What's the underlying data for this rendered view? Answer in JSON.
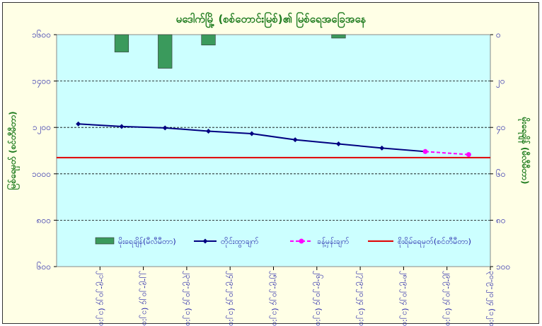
{
  "chart_data": {
    "type": "bar",
    "title": "မဒေါက်မြို့ (စစ်တောင်းမြစ်)၏ မြစ်ရေအခြေအနေ",
    "ylabel_left": "မြစ်ရေမှတ် (စင်တီမီတာ)",
    "ylabel_right": "မိုးရေချိန် (မီလီမီတာ)",
    "ylim_left": [
      600,
      1600
    ],
    "yticks_left": [
      "၆၀၀",
      "၈၀၀",
      "၁၀၀၀",
      "၁၂၀၀",
      "၁၄၀၀",
      "၁၆၀၀"
    ],
    "yticks_left_values": [
      600,
      800,
      1000,
      1200,
      1400,
      1600
    ],
    "ylim_right": [
      0,
      100
    ],
    "yticks_right": [
      "၀",
      "၂၀",
      "၄၀",
      "၆၀",
      "၈၀",
      "၁၀၀"
    ],
    "yticks_right_values": [
      0,
      20,
      40,
      60,
      80,
      100
    ],
    "right_axis_inverted": true,
    "categories": [
      "၂၁-၉-၂၀၂၄ (၁၂:၀၀)",
      "၂၂-၉-၂၀၂၄ (၁၂:၀၀)",
      "၂၃-၉-၂၀၂၄ (၁၂:၀၀)",
      "၂၄-၉-၂၀၂၄ (၁၂:၀၀)",
      "၂၅-၉-၂၀၂၄ (၁၂:၀၀)",
      "၂၆-၉-၂၀၂၄ (၁၂:၀၀)",
      "၂၇-၉-၂၀၂၄ (၁၂:၀၀)",
      "၂၈-၉-၂၀၂၄ (၁၂:၀၀)",
      "၂၉-၉-၂၀၂၄ (၁၂:၀၀)",
      "၃၀-၉-၂၀၂၄ (၁၂:၀၀)"
    ],
    "series": [
      {
        "name": "မိုးရေချိန်(မီလီမီတာ)",
        "kind": "bar",
        "axis": "right",
        "color": "#3a9a5c",
        "values": [
          null,
          7.5,
          14.5,
          4.5,
          null,
          null,
          1.5,
          null,
          null,
          null
        ]
      },
      {
        "name": "တိုင်းထွာချက်",
        "kind": "line",
        "axis": "left",
        "color": "#000080",
        "values": [
          1215,
          1204,
          1198,
          1184,
          1173,
          1147,
          1129,
          1111,
          1096,
          null
        ]
      },
      {
        "name": "ခန့်မှန်းချက်",
        "kind": "dashed-line",
        "axis": "left",
        "color": "#ff00ff",
        "values": [
          null,
          null,
          null,
          null,
          null,
          null,
          null,
          null,
          1096,
          1083
        ]
      },
      {
        "name": "စိုးရိမ်ရေမှတ်(စင်တီမီတာ)",
        "kind": "hline",
        "axis": "left",
        "color": "#e00000",
        "value": 1070
      }
    ],
    "grid": true,
    "legend_position": "bottom"
  }
}
